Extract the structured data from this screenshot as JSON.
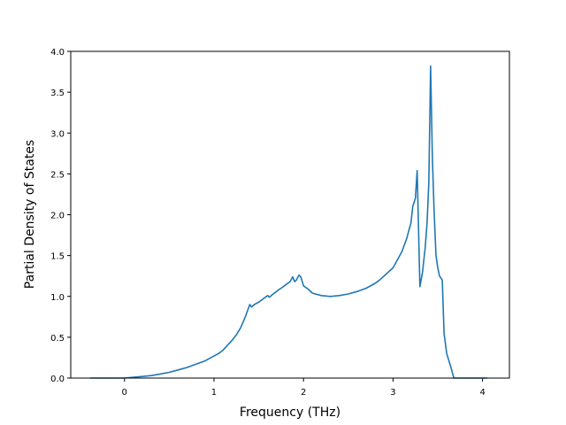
{
  "chart_data": {
    "type": "line",
    "title": "",
    "xlabel": "Frequency (THz)",
    "ylabel": "Partial Density of States",
    "xlim": [
      -0.6,
      4.3
    ],
    "ylim": [
      0,
      4.0
    ],
    "xticks": [
      0,
      1,
      2,
      3,
      4
    ],
    "xtick_labels": [
      "0",
      "1",
      "2",
      "3",
      "4"
    ],
    "yticks": [
      0.0,
      0.5,
      1.0,
      1.5,
      2.0,
      2.5,
      3.0,
      3.5,
      4.0
    ],
    "ytick_labels": [
      "0.0",
      "0.5",
      "1.0",
      "1.5",
      "2.0",
      "2.5",
      "3.0",
      "3.5",
      "4.0"
    ],
    "grid": false,
    "legend": "none",
    "series": [
      {
        "color": "#1f77b4",
        "x": [
          -0.38,
          -0.2,
          0.0,
          0.1,
          0.2,
          0.3,
          0.4,
          0.5,
          0.6,
          0.7,
          0.8,
          0.9,
          1.0,
          1.05,
          1.1,
          1.15,
          1.2,
          1.25,
          1.3,
          1.35,
          1.4,
          1.42,
          1.45,
          1.5,
          1.55,
          1.6,
          1.62,
          1.65,
          1.7,
          1.72,
          1.75,
          1.8,
          1.85,
          1.88,
          1.9,
          1.92,
          1.95,
          1.97,
          2.0,
          2.05,
          2.1,
          2.2,
          2.3,
          2.4,
          2.5,
          2.6,
          2.7,
          2.8,
          2.85,
          2.9,
          2.95,
          3.0,
          3.05,
          3.1,
          3.15,
          3.2,
          3.22,
          3.25,
          3.27,
          3.3,
          3.33,
          3.36,
          3.38,
          3.4,
          3.42,
          3.44,
          3.46,
          3.48,
          3.5,
          3.52,
          3.55,
          3.57,
          3.6,
          3.65,
          3.68,
          3.75,
          3.85,
          4.05
        ],
        "y": [
          0.0,
          0.0,
          0.0,
          0.01,
          0.02,
          0.03,
          0.05,
          0.07,
          0.1,
          0.13,
          0.17,
          0.21,
          0.27,
          0.3,
          0.34,
          0.4,
          0.46,
          0.53,
          0.62,
          0.75,
          0.9,
          0.87,
          0.9,
          0.93,
          0.97,
          1.01,
          0.99,
          1.02,
          1.06,
          1.08,
          1.1,
          1.14,
          1.18,
          1.24,
          1.18,
          1.2,
          1.26,
          1.24,
          1.13,
          1.09,
          1.04,
          1.01,
          1.0,
          1.01,
          1.03,
          1.06,
          1.1,
          1.16,
          1.2,
          1.25,
          1.3,
          1.35,
          1.45,
          1.55,
          1.7,
          1.9,
          2.1,
          2.2,
          2.54,
          1.12,
          1.3,
          1.6,
          1.9,
          2.4,
          3.82,
          2.7,
          2.0,
          1.5,
          1.35,
          1.25,
          1.2,
          0.55,
          0.3,
          0.12,
          0.0,
          0.0,
          0.0,
          0.0
        ]
      }
    ]
  }
}
